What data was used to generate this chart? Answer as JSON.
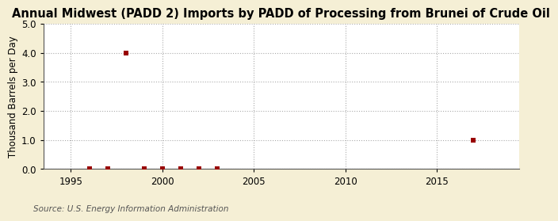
{
  "title": "Annual Midwest (PADD 2) Imports by PADD of Processing from Brunei of Crude Oil",
  "ylabel": "Thousand Barrels per Day",
  "source": "Source: U.S. Energy Information Administration",
  "figure_background_color": "#f5efd5",
  "plot_background_color": "#ffffff",
  "marker_color": "#990000",
  "marker_size": 5,
  "xlim": [
    1993.5,
    2019.5
  ],
  "ylim": [
    0.0,
    5.0
  ],
  "yticks": [
    0.0,
    1.0,
    2.0,
    3.0,
    4.0,
    5.0
  ],
  "xticks": [
    1995,
    2000,
    2005,
    2010,
    2015
  ],
  "data_x": [
    1996,
    1997,
    1998,
    1999,
    2000,
    2001,
    2002,
    2003,
    2017
  ],
  "data_y": [
    0.0,
    0.0,
    4.0,
    0.0,
    0.0,
    0.0,
    0.0,
    0.0,
    1.0
  ],
  "grid_color": "#aaaaaa",
  "grid_style": ":",
  "title_fontsize": 10.5,
  "ylabel_fontsize": 8.5,
  "tick_fontsize": 8.5,
  "source_fontsize": 7.5
}
